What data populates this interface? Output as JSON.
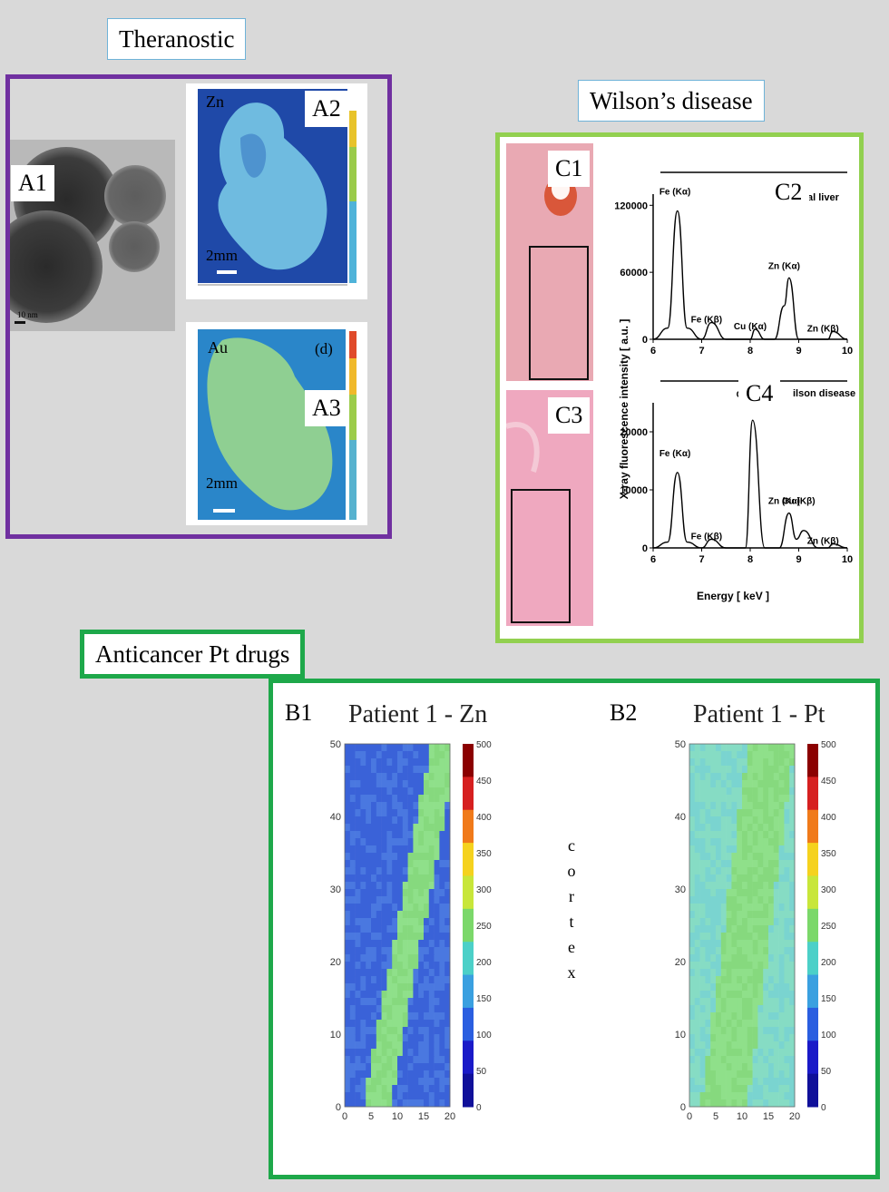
{
  "sections": {
    "theranostic": "Theranostic",
    "wilson": "Wilson’s disease",
    "anticancer": "Anticancer Pt drugs"
  },
  "panels": {
    "a1": "A1",
    "a2": "A2",
    "a3": "A3",
    "c1": "C1",
    "c2": "C2",
    "c3": "C3",
    "c4": "C4",
    "b1": "B1",
    "b2": "B2"
  },
  "tem": {
    "scale": "10 nm"
  },
  "maps_a": {
    "zn": {
      "element": "Zn",
      "scale": "2mm"
    },
    "au": {
      "element": "Au",
      "scale": "2mm",
      "tag": "(d)"
    }
  },
  "xrf": {
    "y_label": "X-ray fluorescence intensity [ a.u. ]",
    "x_label": "Energy [ keV ]",
    "top": {
      "legend": "al liver",
      "yticks": [
        "120000",
        "60000",
        "0"
      ]
    },
    "bottom": {
      "legend": "ilson disease",
      "yticks": [
        "20000",
        "10000",
        "0"
      ]
    },
    "xticks": [
      "6",
      "7",
      "8",
      "9",
      "10"
    ]
  },
  "chart_data": [
    {
      "type": "line",
      "x": [
        6,
        6.3,
        6.5,
        6.7,
        7,
        7.2,
        7.5,
        8,
        8.1,
        8.3,
        8.5,
        8.7,
        8.8,
        9,
        9.3,
        9.6,
        9.7,
        10
      ],
      "series": [
        {
          "values": [
            0,
            10000,
            115000,
            10000,
            0,
            15000,
            0,
            0,
            9000,
            0,
            0,
            30000,
            55000,
            0,
            0,
            0,
            7000,
            0
          ]
        }
      ],
      "xlim": [
        6,
        10
      ],
      "ylim": [
        0,
        130000
      ],
      "annotations": [
        "Fe (Kα)",
        "Fe (Kβ)",
        "Cu (Kα)",
        "Zn (Kα)",
        "Zn (Kβ)"
      ]
    },
    {
      "type": "line",
      "x": [
        6,
        6.3,
        6.5,
        6.7,
        7,
        7.2,
        7.5,
        7.9,
        8.05,
        8.3,
        8.6,
        8.8,
        8.95,
        9.1,
        9.4,
        9.6,
        9.7,
        10
      ],
      "series": [
        {
          "values": [
            0,
            1000,
            13000,
            1000,
            0,
            1500,
            0,
            0,
            22000,
            0,
            0,
            6000,
            1500,
            3000,
            0,
            0,
            700,
            0
          ]
        }
      ],
      "xlim": [
        6,
        10
      ],
      "ylim": [
        0,
        25000
      ],
      "annotations": [
        "Cu (Kα)",
        "Fe (Kα)",
        "Zn (Kα)",
        "Cu (Kβ)",
        "Fe (Kβ)",
        "Zn (Kβ)"
      ]
    }
  ],
  "maps_b": {
    "b1": {
      "title": "Patient 1 - Zn",
      "yticks": [
        "50",
        "40",
        "30",
        "20",
        "10",
        "0"
      ],
      "xticks": [
        "0",
        "5",
        "10",
        "15",
        "20"
      ],
      "cbar": [
        "500",
        "450",
        "400",
        "350",
        "300",
        "250",
        "200",
        "150",
        "100",
        "50",
        "0"
      ]
    },
    "b2": {
      "title": "Patient 1 - Pt",
      "yticks": [
        "50",
        "40",
        "30",
        "20",
        "10",
        "0"
      ],
      "xticks": [
        "0",
        "5",
        "10",
        "15",
        "20"
      ],
      "cbar": [
        "500",
        "450",
        "400",
        "350",
        "300",
        "250",
        "200",
        "150",
        "100",
        "50",
        "0"
      ]
    },
    "cortex": [
      "c",
      "o",
      "r",
      "t",
      "e",
      "x"
    ]
  },
  "colors": {
    "theranostic_frame": "#7030a0",
    "wilson_frame": "#92d050",
    "anticancer_frame": "#1ea84a"
  }
}
